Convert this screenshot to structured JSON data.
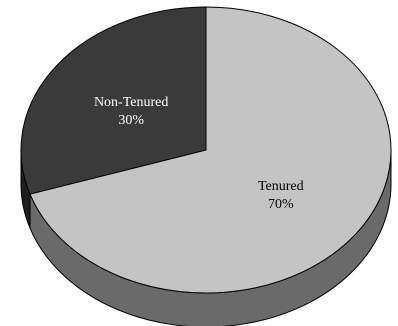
{
  "chart_data": {
    "type": "pie",
    "style": "3d",
    "slices": [
      {
        "label": "Non-Tenured",
        "percent_label": "30%",
        "value": 30,
        "top_color": "#3a3a3a",
        "side_color": "#1e1e1e",
        "text_color": "#ffffff"
      },
      {
        "label": "Tenured",
        "percent_label": "70%",
        "value": 70,
        "top_color": "#c4c4c4",
        "side_color": "#6a6a6a",
        "text_color": "#000000"
      }
    ],
    "title": "",
    "legend": "none"
  }
}
